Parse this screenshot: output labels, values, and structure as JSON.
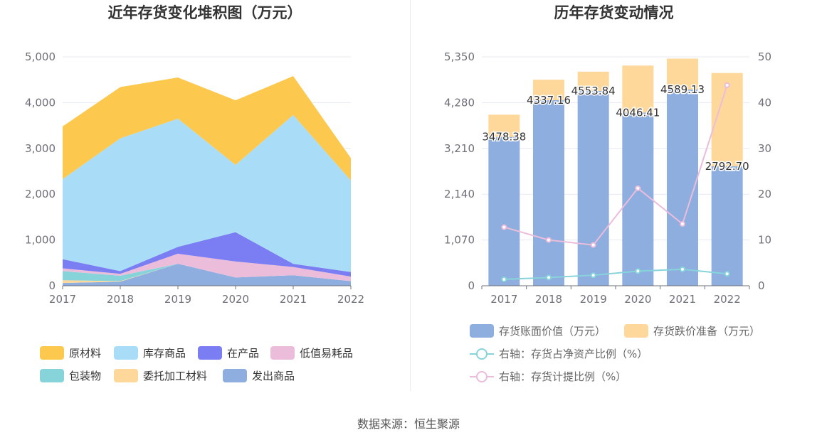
{
  "source": "数据来源：恒生聚源",
  "chart_data": [
    {
      "type": "area",
      "stacked": true,
      "title": "近年存货变化堆积图（万元）",
      "categories": [
        "2017",
        "2018",
        "2019",
        "2020",
        "2021",
        "2022"
      ],
      "ylim": [
        0,
        5000
      ],
      "yticks": [
        "0",
        "1,000",
        "2,000",
        "3,000",
        "4,000",
        "5,000"
      ],
      "ytick_values": [
        0,
        1000,
        2000,
        3000,
        4000,
        5000
      ],
      "grid": true,
      "legend_position": "bottom",
      "series": [
        {
          "name": "发出商品",
          "color": "#8eaee0",
          "values": [
            60,
            90,
            480,
            180,
            230,
            100
          ]
        },
        {
          "name": "委托加工材料",
          "color": "#fdd89a",
          "values": [
            60,
            10,
            0,
            0,
            0,
            0
          ]
        },
        {
          "name": "包装物",
          "color": "#86d4da",
          "values": [
            200,
            120,
            0,
            0,
            0,
            0
          ]
        },
        {
          "name": "低值易耗品",
          "color": "#ebbddb",
          "values": [
            60,
            40,
            220,
            350,
            180,
            100
          ]
        },
        {
          "name": "在产品",
          "color": "#7b7ef2",
          "values": [
            200,
            60,
            150,
            640,
            70,
            100
          ]
        },
        {
          "name": "库存商品",
          "color": "#a9ddf7",
          "values": [
            1750,
            2900,
            2800,
            1470,
            3250,
            2000
          ]
        },
        {
          "name": "原材料",
          "color": "#fdc84e",
          "values": [
            1150,
            1120,
            900,
            1410,
            850,
            490
          ]
        }
      ],
      "legend": [
        {
          "name": "原材料",
          "color": "#fdc84e"
        },
        {
          "name": "库存商品",
          "color": "#a9ddf7"
        },
        {
          "name": "在产品",
          "color": "#7b7ef2"
        },
        {
          "name": "低值易耗品",
          "color": "#ebbddb"
        },
        {
          "name": "包装物",
          "color": "#86d4da"
        },
        {
          "name": "委托加工材料",
          "color": "#fdd89a"
        },
        {
          "name": "发出商品",
          "color": "#8eaee0"
        }
      ]
    },
    {
      "type": "bar",
      "stacked": true,
      "title": "历年存货变动情况",
      "categories": [
        "2017",
        "2018",
        "2019",
        "2020",
        "2021",
        "2022"
      ],
      "ylim": [
        0,
        5350
      ],
      "yticks": [
        "0",
        "1,070",
        "2,140",
        "3,210",
        "4,280",
        "5,350"
      ],
      "ytick_values": [
        0,
        1070,
        2140,
        3210,
        4280,
        5350
      ],
      "y2lim": [
        0,
        50
      ],
      "y2ticks": [
        "0",
        "10",
        "20",
        "30",
        "40",
        "50"
      ],
      "y2tick_values": [
        0,
        10,
        20,
        30,
        40,
        50
      ],
      "grid": true,
      "legend_position": "bottom",
      "bar_series": [
        {
          "name": "存货账面价值（万元）",
          "color": "#8eaee0",
          "values": [
            3478.38,
            4337.16,
            4553.84,
            4046.41,
            4589.13,
            2792.7
          ],
          "labels": [
            "3478.38",
            "4337.16",
            "4553.84",
            "4046.41",
            "4589.13",
            "2792.70"
          ]
        },
        {
          "name": "存货跌价准备（万元）",
          "color": "#fdd89a",
          "values": [
            520,
            480,
            450,
            1100,
            720,
            2180
          ]
        }
      ],
      "line_series": [
        {
          "name": "右轴：存货占净资产比例（%）",
          "color": "#86d4da",
          "axis": "right",
          "values": [
            1.4,
            1.8,
            2.3,
            3.2,
            3.6,
            2.6
          ]
        },
        {
          "name": "右轴：存货计提比例（%）",
          "color": "#ebbddb",
          "axis": "right",
          "values": [
            12.8,
            10.0,
            8.9,
            21.3,
            13.5,
            43.8
          ]
        }
      ]
    }
  ]
}
